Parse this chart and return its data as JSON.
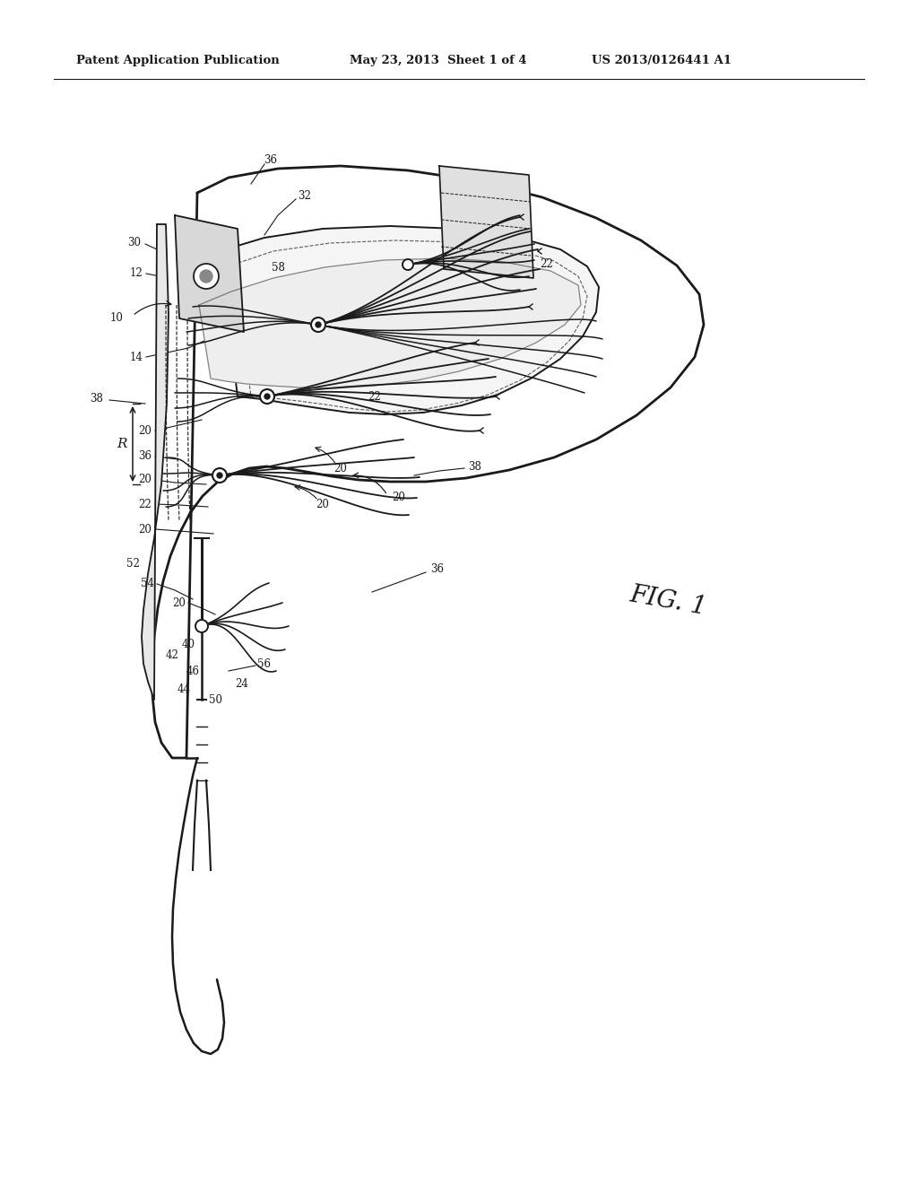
{
  "title_left": "Patent Application Publication",
  "title_mid": "May 23, 2013  Sheet 1 of 4",
  "title_right": "US 2013/0126441 A1",
  "fig_label": "FIG. 1",
  "bg_color": "#ffffff",
  "line_color": "#1a1a1a",
  "label_fontsize": 8.5,
  "header_fontsize": 9.5,
  "fig_label_fontsize": 20
}
